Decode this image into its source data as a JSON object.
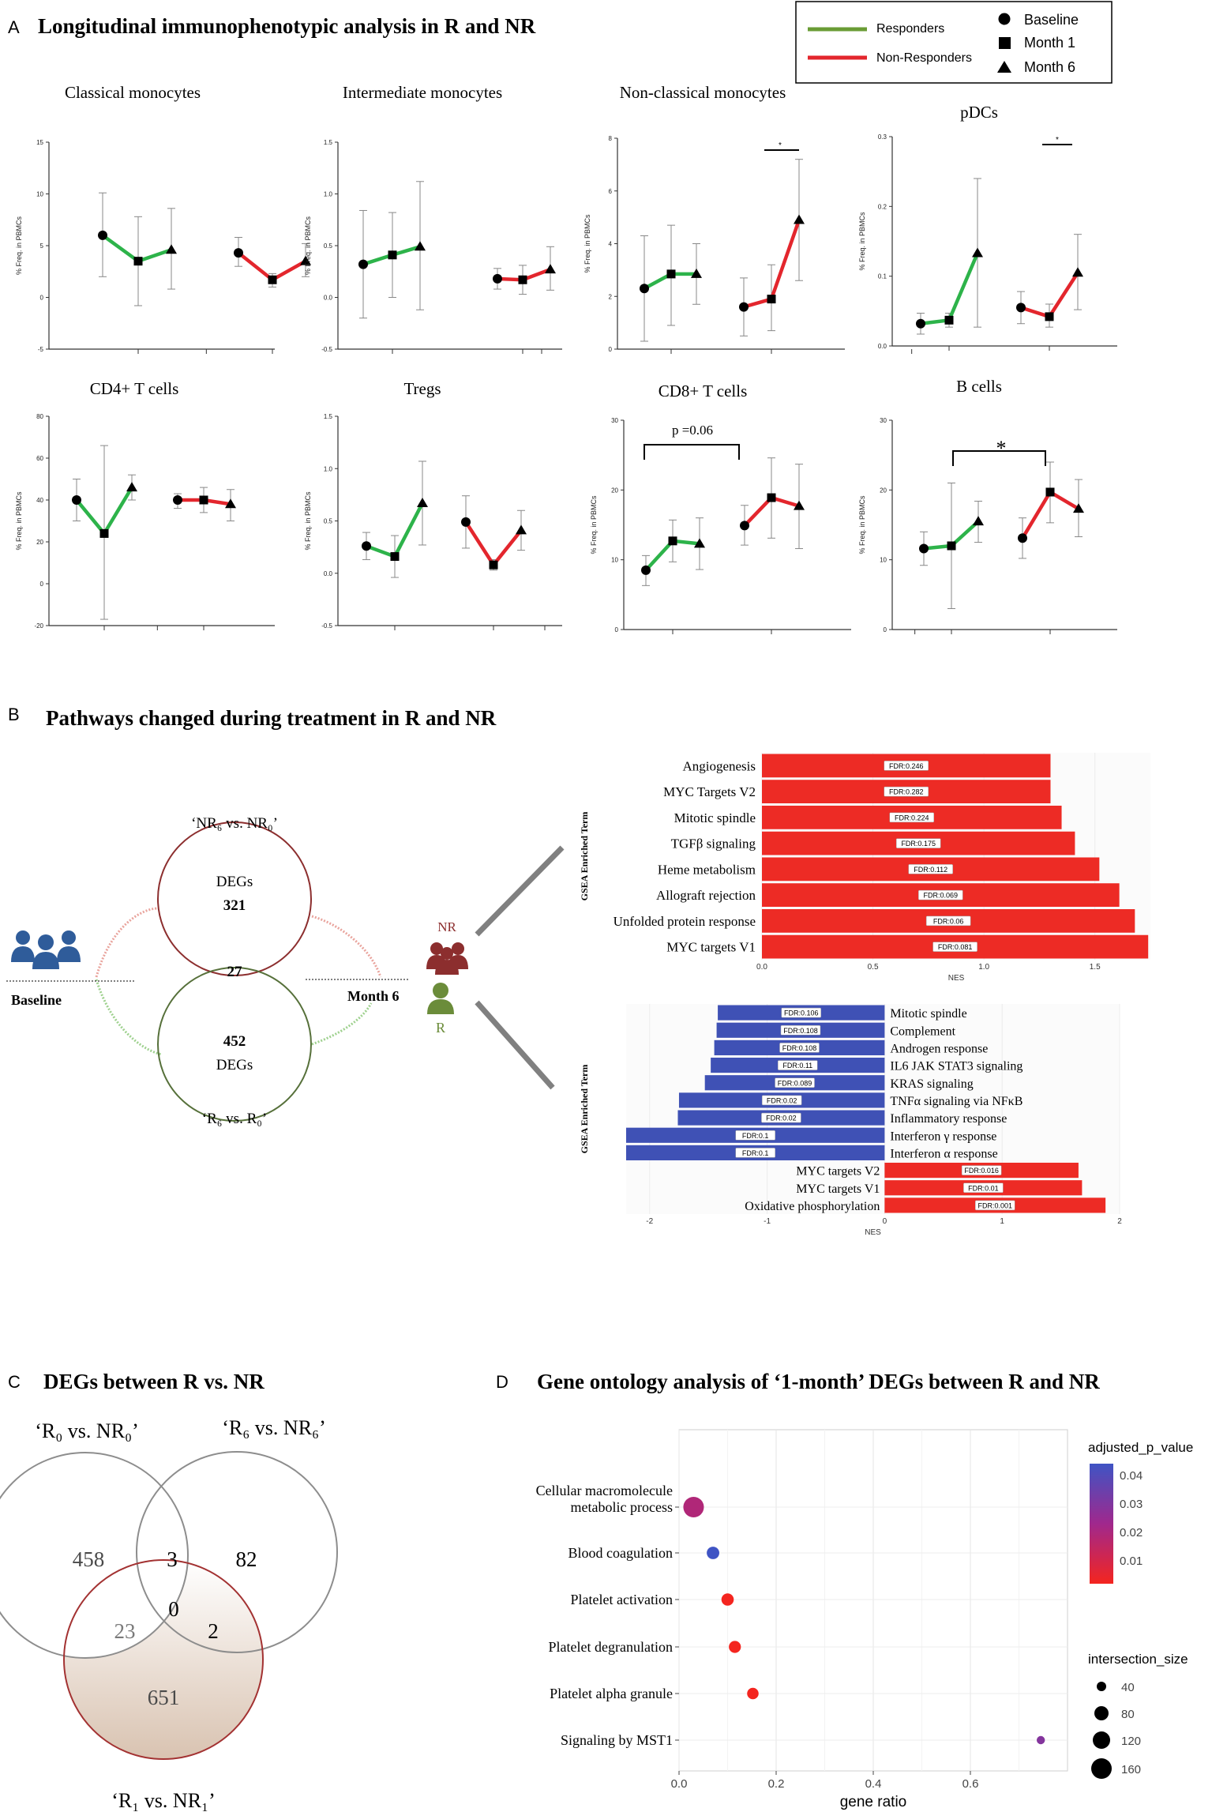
{
  "panels": {
    "a_label": "A",
    "a_title": "Longitudinal immunophenotypic analysis in R and NR",
    "b_label": "B",
    "b_title": "Pathways changed during treatment in R and NR",
    "c_label": "C",
    "c_title": "DEGs between R vs. NR",
    "d_label": "D",
    "d_title": "Gene ontology analysis of ‘1-month’ DEGs between R and NR"
  },
  "legend": {
    "responders": "Responders",
    "non_responders": "Non-Responders",
    "baseline": "Baseline",
    "month1": "Month 1",
    "month6": "Month 6",
    "colors": {
      "responders": "#2db34a",
      "non_responders": "#e3262d"
    }
  },
  "chart_data": [
    {
      "type": "line",
      "title": "Classical monocytes",
      "ylabel": "% Freq. in PBMCs",
      "ylim": [
        -5,
        15
      ],
      "ticks": [
        "-5",
        "0",
        "5",
        "10",
        "15"
      ],
      "R": {
        "mean": [
          6.0,
          3.5,
          4.6
        ],
        "lo": [
          2.0,
          -0.8,
          0.8
        ],
        "hi": [
          10.1,
          7.8,
          8.6
        ]
      },
      "NR": {
        "mean": [
          4.3,
          1.7,
          3.5
        ],
        "lo": [
          3.0,
          1.0,
          2.0
        ],
        "hi": [
          5.8,
          2.3,
          5.2
        ]
      }
    },
    {
      "type": "line",
      "title": "Intermediate monocytes",
      "ylabel": "% Freq. in PBMCs",
      "ylim": [
        -0.5,
        1.5
      ],
      "ticks": [
        "-0.5",
        "0.0",
        "0.5",
        "1.0",
        "1.5"
      ],
      "R": {
        "mean": [
          0.32,
          0.41,
          0.49
        ],
        "lo": [
          -0.2,
          0.0,
          -0.12
        ],
        "hi": [
          0.84,
          0.82,
          1.12
        ]
      },
      "NR": {
        "mean": [
          0.18,
          0.17,
          0.27
        ],
        "lo": [
          0.08,
          0.03,
          0.07
        ],
        "hi": [
          0.28,
          0.31,
          0.49
        ]
      }
    },
    {
      "type": "line",
      "title": "Non-classical monocytes",
      "ylabel": "% Freq. in PBMCs",
      "ylim": [
        0,
        8
      ],
      "ticks": [
        "0",
        "2",
        "4",
        "6",
        "8"
      ],
      "R": {
        "mean": [
          2.3,
          2.85,
          2.85
        ],
        "lo": [
          0.3,
          0.9,
          1.7
        ],
        "hi": [
          4.3,
          4.7,
          4.0
        ]
      },
      "NR": {
        "mean": [
          1.6,
          1.9,
          4.9
        ],
        "lo": [
          0.5,
          0.7,
          2.6
        ],
        "hi": [
          2.7,
          3.2,
          7.2
        ]
      },
      "annotation": "*"
    },
    {
      "type": "line",
      "title": "pDCs",
      "ylabel": "% Freq. in PBMCs",
      "ylim": [
        0,
        0.3
      ],
      "ticks": [
        "0.0",
        "0.1",
        "0.2",
        "0.3"
      ],
      "R": {
        "mean": [
          0.032,
          0.037,
          0.133
        ],
        "lo": [
          0.017,
          0.027,
          0.027
        ],
        "hi": [
          0.047,
          0.047,
          0.24
        ]
      },
      "NR": {
        "mean": [
          0.055,
          0.042,
          0.105
        ],
        "lo": [
          0.032,
          0.027,
          0.052
        ],
        "hi": [
          0.078,
          0.06,
          0.16
        ]
      },
      "annotation": "*"
    },
    {
      "type": "line",
      "title": "CD4+ T cells",
      "ylabel": "% Freq. in PBMCs",
      "ylim": [
        -20,
        80
      ],
      "ticks": [
        "-20",
        "0",
        "20",
        "40",
        "60",
        "80"
      ],
      "R": {
        "mean": [
          40,
          24,
          46
        ],
        "lo": [
          30,
          -17,
          40
        ],
        "hi": [
          50,
          66,
          52
        ]
      },
      "NR": {
        "mean": [
          40,
          40,
          38
        ],
        "lo": [
          36,
          34,
          30
        ],
        "hi": [
          43,
          46,
          45
        ]
      }
    },
    {
      "type": "line",
      "title": "Tregs",
      "ylabel": "% Freq. in PBMCs",
      "ylim": [
        -0.5,
        1.5
      ],
      "ticks": [
        "-0.5",
        "0.0",
        "0.5",
        "1.0",
        "1.5"
      ],
      "R": {
        "mean": [
          0.26,
          0.16,
          0.67
        ],
        "lo": [
          0.13,
          -0.04,
          0.27
        ],
        "hi": [
          0.39,
          0.36,
          1.07
        ]
      },
      "NR": {
        "mean": [
          0.49,
          0.08,
          0.41
        ],
        "lo": [
          0.24,
          0.03,
          0.22
        ],
        "hi": [
          0.74,
          0.13,
          0.6
        ]
      }
    },
    {
      "type": "line",
      "title": "CD8+ T cells",
      "ylabel": "% Freq. in PBMCs",
      "ylim": [
        0,
        30
      ],
      "ticks": [
        "0",
        "10",
        "20",
        "30"
      ],
      "R": {
        "mean": [
          8.5,
          12.7,
          12.3
        ],
        "lo": [
          6.3,
          9.7,
          8.6
        ],
        "hi": [
          10.6,
          15.7,
          16.0
        ]
      },
      "NR": {
        "mean": [
          14.9,
          18.9,
          17.7
        ],
        "lo": [
          12.1,
          13.1,
          11.6
        ],
        "hi": [
          17.8,
          24.6,
          23.7
        ]
      },
      "annotation": "p =0.06"
    },
    {
      "type": "line",
      "title": "B cells",
      "ylabel": "% Freq. in PBMCs",
      "ylim": [
        0,
        30
      ],
      "ticks": [
        "0",
        "10",
        "20",
        "30"
      ],
      "R": {
        "mean": [
          11.6,
          12.0,
          15.5
        ],
        "lo": [
          9.2,
          3.0,
          12.5
        ],
        "hi": [
          14.0,
          21.0,
          18.4
        ]
      },
      "NR": {
        "mean": [
          13.1,
          19.7,
          17.3
        ],
        "lo": [
          10.2,
          15.3,
          13.3
        ],
        "hi": [
          16.0,
          24.0,
          21.5
        ]
      },
      "annotation": "*"
    },
    {
      "type": "bar",
      "orientation": "horizontal",
      "title": "NR GSEA",
      "ylabel": "GSEA Enriched Term",
      "xlabel": "NES",
      "xlim": [
        0,
        1.75
      ],
      "xticks": [
        "0.0",
        "0.5",
        "1.0",
        "1.5"
      ],
      "terms": [
        "Angiogenesis",
        "MYC Targets V2",
        "Mitotic spindle",
        "TGFβ signaling",
        "Heme metabolism",
        "Allograft rejection",
        "Unfolded protein response",
        "MYC targets V1"
      ],
      "values": [
        1.3,
        1.3,
        1.35,
        1.41,
        1.52,
        1.61,
        1.68,
        1.74
      ],
      "fdr": [
        "FDR:0.246",
        "FDR:0.282",
        "FDR:0.224",
        "FDR:0.175",
        "FDR:0.112",
        "FDR:0.069",
        "FDR:0.06",
        "FDR:0.081"
      ]
    },
    {
      "type": "bar",
      "orientation": "horizontal",
      "title": "R GSEA",
      "ylabel": "GSEA Enriched Term",
      "xlabel": "NES",
      "xlim": [
        -2.2,
        2
      ],
      "xticks": [
        "-2",
        "-1",
        "0",
        "1",
        "2"
      ],
      "terms": [
        "Mitotic spindle",
        "Complement",
        "Androgen response",
        "IL6 JAK STAT3 signaling",
        "KRAS signaling",
        "TNFα signaling via NFκB",
        "Inflammatory response",
        "Interferon γ response",
        "Interferon α response",
        "MYC targets V2",
        "MYC targets V1",
        "Oxidative phosphorylation"
      ],
      "values": [
        -1.42,
        -1.43,
        -1.45,
        -1.48,
        -1.53,
        -1.75,
        -1.76,
        -2.2,
        -2.2,
        1.65,
        1.68,
        1.88
      ],
      "fdr": [
        "FDR:0.106",
        "FDR:0.108",
        "FDR:0.108",
        "FDR:0.11",
        "FDR:0.089",
        "FDR:0.02",
        "FDR:0.02",
        "FDR:0.1",
        "FDR:0.1",
        "FDR:0.016",
        "FDR:0.01",
        "FDR:0.001"
      ]
    },
    {
      "type": "scatter",
      "title": "Gene ontology analysis",
      "xlabel": "gene ratio",
      "xlim": [
        0,
        0.8
      ],
      "xticks": [
        "0.0",
        "0.2",
        "0.4",
        "0.6"
      ],
      "terms": [
        "Cellular macromolecule metabolic process",
        "Blood coagulation",
        "Platelet activation",
        "Platelet degranulation",
        "Platelet alpha granule",
        "Signaling by MST1"
      ],
      "term_lines": [
        [
          "Cellular macromolecule",
          "metabolic process"
        ],
        [
          "Blood coagulation"
        ],
        [
          "Platelet activation"
        ],
        [
          "Platelet degranulation"
        ],
        [
          "Platelet alpha granule"
        ],
        [
          "Signaling by MST1"
        ]
      ],
      "gene_ratio": [
        0.03,
        0.07,
        0.1,
        0.115,
        0.152,
        0.745
      ],
      "intersection_size": [
        165,
        40,
        38,
        35,
        30,
        8
      ],
      "adjusted_p_value": [
        0.018,
        0.043,
        0.001,
        0.001,
        0.001,
        0.028
      ],
      "legend_p_title": "adjusted_p_value",
      "legend_p_ticks": [
        "0.04",
        "0.03",
        "0.02",
        "0.01"
      ],
      "legend_size_title": "intersection_size",
      "legend_size_ticks": [
        "40",
        "80",
        "120",
        "160"
      ]
    }
  ],
  "venn_b": {
    "nr_label": "‘NR₆ vs. NR₀’",
    "r_label": "‘R₆ vs. R₀’",
    "nr_degs_word": "DEGs",
    "nr_count": "321",
    "overlap": "27",
    "r_count": "452",
    "r_degs_word": "DEGs",
    "baseline": "Baseline",
    "month6": "Month 6",
    "nr": "NR",
    "r": "R"
  },
  "venn_c": {
    "a_label": "‘R₀ vs. NR₀’",
    "b_label": "‘R₆ vs. NR₆’",
    "c_label": "‘R₁ vs. NR₁’",
    "a_only": "458",
    "ab": "3",
    "b_only": "82",
    "ac": "23",
    "abc": "0",
    "bc": "2",
    "c_only": "651"
  }
}
